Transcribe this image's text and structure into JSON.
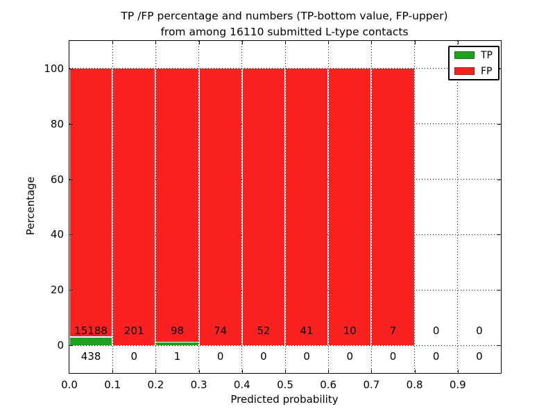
{
  "title": {
    "line1": "TP /FP percentage and numbers (TP-bottom value, FP-upper)",
    "line2": "from among 16110 submitted L-type contacts"
  },
  "chart_data": {
    "type": "bar",
    "stacked": true,
    "description": "Stacked percentage bars per predicted-probability bin; text labels show raw counts (TP below axis zero line, FP above it)",
    "total_contacts": 16110,
    "x_bin_edges": [
      0.0,
      0.1,
      0.2,
      0.3,
      0.4,
      0.5,
      0.6,
      0.7,
      0.8,
      0.9,
      1.0
    ],
    "series": [
      {
        "name": "TP",
        "color": "#1fa11f",
        "counts": [
          438,
          0,
          1,
          0,
          0,
          0,
          0,
          0,
          0,
          0
        ]
      },
      {
        "name": "FP",
        "color": "#fa2121",
        "counts": [
          15188,
          201,
          98,
          74,
          52,
          41,
          10,
          7,
          0,
          0
        ]
      }
    ],
    "xlabel": "Predicted probability",
    "ylabel": "Percentage",
    "xticks": [
      "0.0",
      "0.1",
      "0.2",
      "0.3",
      "0.4",
      "0.5",
      "0.6",
      "0.7",
      "0.8",
      "0.9"
    ],
    "yticks": [
      0,
      20,
      40,
      60,
      80,
      100
    ],
    "xlim": [
      0.0,
      1.0
    ],
    "ylim": [
      -10,
      110
    ],
    "grid": "dotted",
    "legend": {
      "position": "upper right",
      "entries": [
        "TP",
        "FP"
      ]
    }
  }
}
